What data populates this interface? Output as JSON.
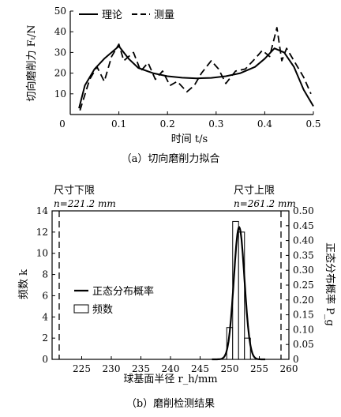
{
  "chart_data": [
    {
      "type": "line",
      "ylabel": "切向磨削力 Fₜ/N",
      "xlabel": "时间 t/s",
      "caption": "（a）切向磨削力拟合",
      "xlim": [
        0,
        0.5
      ],
      "ylim": [
        0,
        50
      ],
      "xticks": [
        "0",
        "0.1",
        "0.2",
        "0.3",
        "0.4",
        "0.5"
      ],
      "yticks": [
        "0",
        "10",
        "20",
        "30",
        "40",
        "50"
      ],
      "legend_position": "top",
      "series": [
        {
          "name": "理论",
          "style": "solid",
          "x": [
            0.018,
            0.03,
            0.05,
            0.07,
            0.09,
            0.1,
            0.12,
            0.14,
            0.17,
            0.2,
            0.23,
            0.26,
            0.29,
            0.32,
            0.35,
            0.38,
            0.4,
            0.42,
            0.44,
            0.46,
            0.48,
            0.5
          ],
          "y": [
            3,
            14,
            22,
            27,
            31,
            33,
            27,
            22.5,
            20,
            18.5,
            17.8,
            17.5,
            17.7,
            18.5,
            20,
            23,
            27,
            32,
            30,
            23,
            12,
            4
          ]
        },
        {
          "name": "测量",
          "style": "dashed",
          "x": [
            0.02,
            0.04,
            0.055,
            0.07,
            0.085,
            0.1,
            0.11,
            0.13,
            0.145,
            0.16,
            0.175,
            0.19,
            0.205,
            0.22,
            0.24,
            0.255,
            0.27,
            0.29,
            0.305,
            0.32,
            0.34,
            0.36,
            0.38,
            0.395,
            0.41,
            0.425,
            0.435,
            0.445,
            0.46,
            0.48,
            0.495
          ],
          "y": [
            2,
            17,
            23,
            16,
            28,
            34,
            26,
            30,
            21,
            25,
            17,
            21,
            14,
            16,
            11,
            14,
            20,
            26,
            22,
            15,
            21,
            22,
            27,
            31,
            28,
            42,
            26,
            32,
            26,
            18,
            10
          ]
        }
      ]
    },
    {
      "type": "bar",
      "ylabel": "频数 k",
      "y2label": "正态分布概率 P_g",
      "xlabel": "球基面半径 r_h/mm",
      "caption": "（b）磨削检测结果",
      "xlim": [
        220,
        260
      ],
      "ylim": [
        0,
        14
      ],
      "y2lim": [
        0,
        0.5
      ],
      "xticks": [
        "225",
        "230",
        "235",
        "240",
        "245",
        "250",
        "255",
        "260"
      ],
      "yticks": [
        "0",
        "2",
        "4",
        "6",
        "8",
        "10",
        "12",
        "14"
      ],
      "y2ticks": [
        "0",
        "0.05",
        "0.10",
        "0.15",
        "0.20",
        "0.25",
        "0.30",
        "0.35",
        "0.40",
        "0.45",
        "0.50"
      ],
      "legend_position": "middle-right",
      "bars": {
        "name": "频数",
        "x": [
          250,
          251,
          252,
          253
        ],
        "values": [
          3,
          13,
          12,
          2
        ]
      },
      "curve": {
        "name": "正态分布概率",
        "mean": 251.6,
        "sd": 0.9,
        "peak": 0.445
      },
      "limits": [
        {
          "label": "尺寸下限",
          "value_text": "n=221.2 mm",
          "x": 221.2
        },
        {
          "label": "尺寸上限",
          "value_text": "n=261.2 mm",
          "x": 261.2
        }
      ]
    }
  ]
}
